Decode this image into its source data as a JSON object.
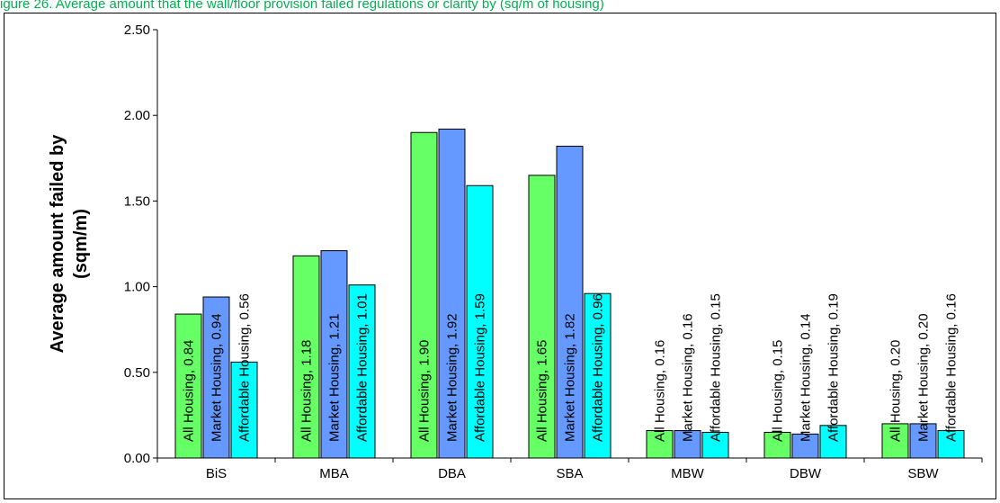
{
  "title": "igure 26. Average amount that the wall/floor provision failed regulations or clarity by (sq/m of housing)",
  "chart_data": {
    "type": "bar",
    "categories": [
      "BiS",
      "MBA",
      "DBA",
      "SBA",
      "MBW",
      "DBW",
      "SBW"
    ],
    "series": [
      {
        "name": "All Housing",
        "color": "#66ff66",
        "values": [
          0.84,
          1.18,
          1.9,
          1.65,
          0.16,
          0.15,
          0.2
        ]
      },
      {
        "name": "Market Housing",
        "color": "#6699ff",
        "values": [
          0.94,
          1.21,
          1.92,
          1.82,
          0.16,
          0.14,
          0.2
        ]
      },
      {
        "name": "Affordable Housing",
        "color": "#00ffff",
        "values": [
          0.56,
          1.01,
          1.59,
          0.96,
          0.15,
          0.19,
          0.16
        ]
      }
    ],
    "ylabel_line1": "Average amount failed by",
    "ylabel_line2": "(sqm/m)",
    "yticks": [
      "0.00",
      "0.50",
      "1.00",
      "1.50",
      "2.00",
      "2.50"
    ],
    "ylim": [
      0,
      2.5
    ],
    "grid": false,
    "legend": "none"
  }
}
